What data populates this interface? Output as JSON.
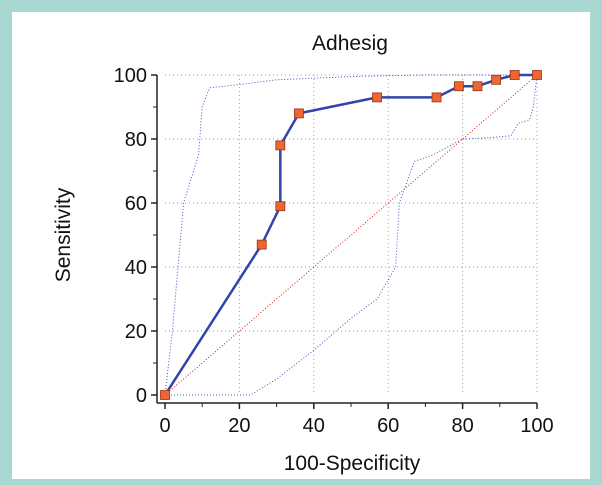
{
  "chart_data": {
    "type": "line",
    "title": "Adhesig",
    "xlabel": "100-Specificity",
    "ylabel": "Sensitivity",
    "xlim": [
      0,
      100
    ],
    "ylim": [
      0,
      100
    ],
    "x_ticks": [
      "0",
      "20",
      "40",
      "60",
      "80",
      "100"
    ],
    "y_ticks": [
      "0",
      "20",
      "40",
      "60",
      "80",
      "100"
    ],
    "grid": true,
    "series": [
      {
        "role": "roc-curve",
        "color": "#3344aa",
        "marker_color": "#ee6633",
        "x": [
          0,
          26,
          31,
          31,
          36,
          57,
          73,
          79,
          84,
          89,
          94,
          100
        ],
        "y": [
          0,
          47,
          59,
          78,
          88,
          93,
          93,
          96.5,
          96.5,
          98.5,
          100,
          100
        ]
      },
      {
        "role": "upper-confidence-bound",
        "color": "#4455bb",
        "x": [
          0,
          2,
          5,
          9,
          10,
          12,
          20,
          30,
          40,
          50,
          60,
          70,
          80,
          90,
          100
        ],
        "y": [
          0,
          20,
          60,
          75,
          90,
          96,
          97,
          98.5,
          99,
          99.5,
          99.8,
          100,
          100,
          100,
          100
        ]
      },
      {
        "role": "lower-confidence-bound",
        "color": "#4455bb",
        "x": [
          0,
          23,
          30,
          40,
          50,
          57,
          62,
          63,
          67,
          72,
          80,
          88,
          93,
          95,
          98,
          99,
          100
        ],
        "y": [
          0,
          0,
          5,
          14,
          24,
          30,
          40,
          60,
          73,
          75,
          80,
          80.5,
          81,
          85,
          86,
          90,
          100
        ]
      },
      {
        "role": "reference-diagonal",
        "color": "#cc2222",
        "x": [
          0,
          100
        ],
        "y": [
          0,
          100
        ]
      }
    ]
  }
}
